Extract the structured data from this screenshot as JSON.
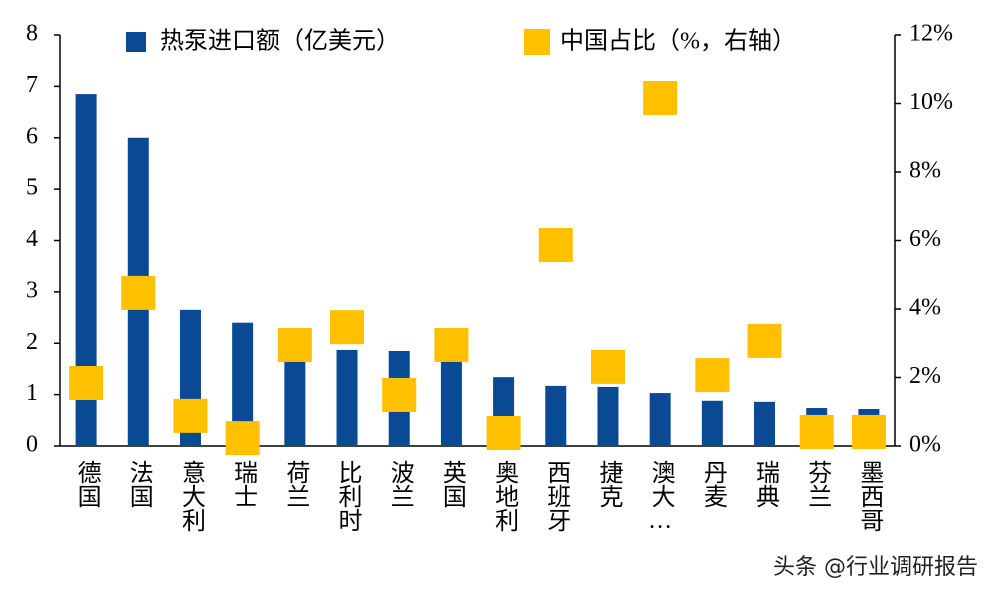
{
  "chart_data": {
    "type": "bar-scatter",
    "categories": [
      "德国",
      "法国",
      "意大利",
      "瑞士",
      "荷兰",
      "比利时",
      "波兰",
      "英国",
      "奥地利",
      "西班牙",
      "捷克",
      "澳大…",
      "丹麦",
      "瑞典",
      "芬兰",
      "墨西哥"
    ],
    "series": [
      {
        "name": "热泵进口额（亿美元）",
        "color": "#0a4a94",
        "type": "bar",
        "values": [
          6.85,
          6.0,
          2.65,
          2.4,
          1.9,
          1.87,
          1.85,
          1.8,
          1.34,
          1.17,
          1.15,
          1.03,
          0.88,
          0.86,
          0.74,
          0.72
        ]
      },
      {
        "name": "中国占比（%，右轴）",
        "color": "#ffc000",
        "type": "scatter",
        "axis": "y2",
        "values": [
          1.84,
          4.47,
          0.88,
          0.23,
          2.95,
          3.47,
          1.49,
          2.95,
          0.38,
          5.87,
          2.31,
          10.16,
          2.07,
          3.07,
          0.41,
          0.41
        ]
      }
    ],
    "ylim": [
      0,
      8
    ],
    "yticks": [
      0,
      1,
      2,
      3,
      4,
      5,
      6,
      7,
      8
    ],
    "y2lim": [
      0,
      12
    ],
    "y2ticks": [
      {
        "value": 0,
        "label": "0%"
      },
      {
        "value": 2,
        "label": "2%"
      },
      {
        "value": 4,
        "label": "4%"
      },
      {
        "value": 6,
        "label": "6%"
      },
      {
        "value": 8,
        "label": "8%"
      },
      {
        "value": 10,
        "label": "10%"
      },
      {
        "value": 12,
        "label": "12%"
      }
    ],
    "watermark": "头条 @行业调研报告"
  }
}
